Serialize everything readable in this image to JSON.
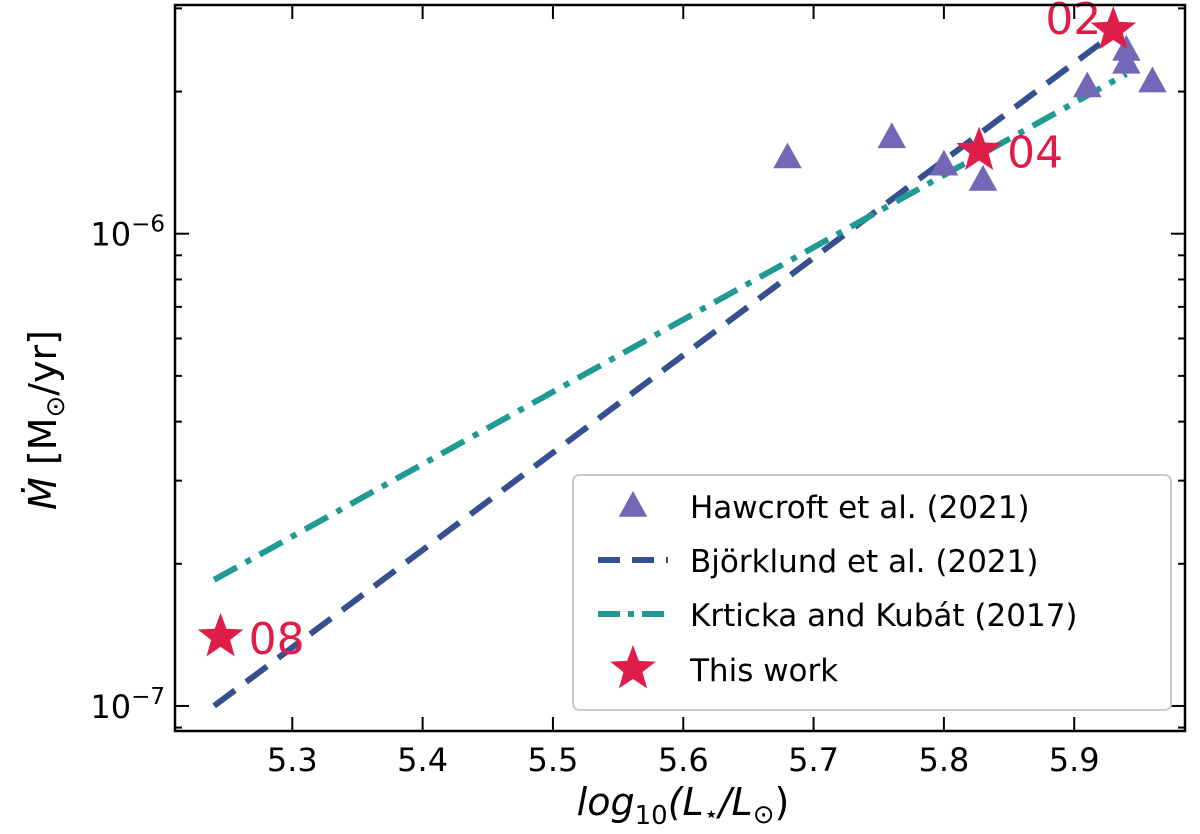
{
  "chart_data": {
    "type": "scatter",
    "y_scale": "log",
    "xlim": [
      5.21,
      5.985
    ],
    "ylim": [
      8.85e-08,
      3.05e-06
    ],
    "xticks": [
      5.3,
      5.4,
      5.5,
      5.6,
      5.7,
      5.8,
      5.9
    ],
    "xtick_labels": [
      "5.3",
      "5.4",
      "5.5",
      "5.6",
      "5.7",
      "5.8",
      "5.9"
    ],
    "yticks": [
      1e-07,
      1e-06
    ],
    "ytick_labels": [
      {
        "base": "10",
        "exp": "−7"
      },
      {
        "base": "10",
        "exp": "−6"
      }
    ],
    "xlabel": {
      "main": "log",
      "sub": "10",
      "open": "(L",
      "star": "⋆",
      "slash": "/L",
      "sun": "⊙",
      "close": ")"
    },
    "ylabel": {
      "mdot": "Ṁ",
      "open": " [M",
      "sun": "⊙",
      "close": "/yr]"
    },
    "series": [
      {
        "name": "Hawcroft et al. (2021)",
        "kind": "scatter",
        "marker": "triangle",
        "color": "#7467b8",
        "points": [
          {
            "x": 5.68,
            "y": 1.45e-06
          },
          {
            "x": 5.76,
            "y": 1.6e-06
          },
          {
            "x": 5.8,
            "y": 1.4e-06
          },
          {
            "x": 5.83,
            "y": 1.3e-06
          },
          {
            "x": 5.91,
            "y": 2.05e-06
          },
          {
            "x": 5.94,
            "y": 2.45e-06
          },
          {
            "x": 5.94,
            "y": 2.3e-06
          },
          {
            "x": 5.96,
            "y": 2.1e-06
          }
        ]
      },
      {
        "name": "Björklund et al. (2021)",
        "kind": "line",
        "style": "dashed",
        "color": "#34508f",
        "points": [
          {
            "x": 5.24,
            "y": 1e-07
          },
          {
            "x": 5.93,
            "y": 2.65e-06
          }
        ]
      },
      {
        "name": "Krticka and Kubát (2017)",
        "kind": "line",
        "style": "dashdot",
        "color": "#219a94",
        "points": [
          {
            "x": 5.24,
            "y": 1.85e-07
          },
          {
            "x": 5.94,
            "y": 2.18e-06
          }
        ]
      },
      {
        "name": "This work",
        "kind": "scatter",
        "marker": "star",
        "color": "#de1d48",
        "points": [
          {
            "x": 5.245,
            "y": 1.4e-07,
            "label": "08"
          },
          {
            "x": 5.827,
            "y": 1.5e-06,
            "label": "04"
          },
          {
            "x": 5.93,
            "y": 2.7e-06,
            "label": "02"
          }
        ]
      }
    ],
    "legend": {
      "location": "lower-right"
    }
  }
}
